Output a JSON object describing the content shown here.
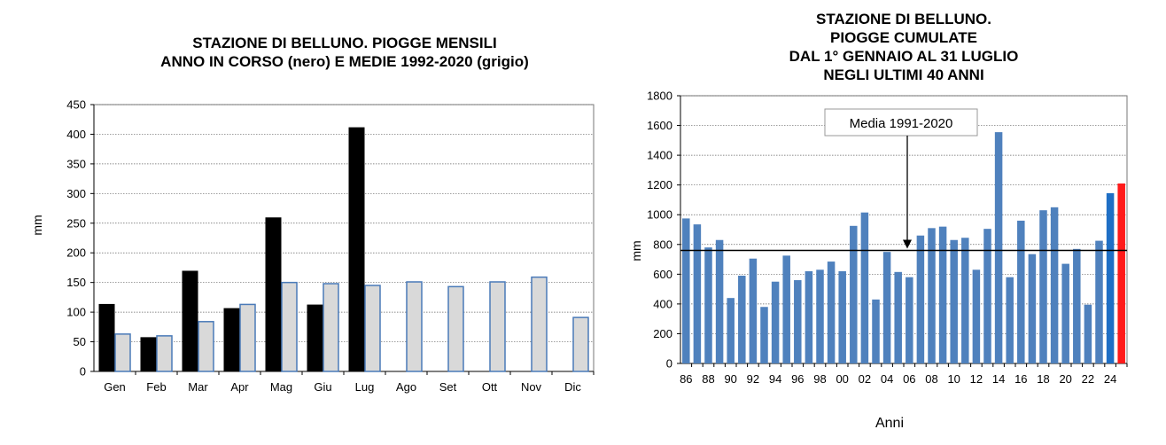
{
  "charts": {
    "left": {
      "title_line1": "STAZIONE DI BELLUNO. PIOGGE MENSILI",
      "title_line2": "ANNO IN CORSO (nero) E MEDIE 1992-2020 (grigio)"
    },
    "right": {
      "title_line1": "STAZIONE DI BELLUNO.",
      "title_line2": "PIOGGE CUMULATE",
      "title_line3": "DAL 1° GENNAIO AL 31 LUGLIO",
      "title_line4": "NEGLI ULTIMI 40 ANNI"
    }
  },
  "colors": {
    "current_year": "#000000",
    "mean": "#d9d9d9",
    "mean_border": "#4a7ab8",
    "annual_bars": "#4f81bd",
    "bar_2024": "#1f6fc5",
    "bar_2025": "#ff1a1a"
  },
  "chart_data": [
    {
      "type": "bar",
      "title": "STAZIONE DI BELLUNO. PIOGGE MENSILI ANNO IN CORSO (nero) E MEDIE 1992-2020 (grigio)",
      "xlabel": "",
      "ylabel": "mm",
      "ylim": [
        0,
        450
      ],
      "yticks": [
        0,
        50,
        100,
        150,
        200,
        250,
        300,
        350,
        400,
        450
      ],
      "grid": "horizontal",
      "categories": [
        "Gen",
        "Feb",
        "Mar",
        "Apr",
        "Mag",
        "Giu",
        "Lug",
        "Ago",
        "Set",
        "Ott",
        "Nov",
        "Dic"
      ],
      "series": [
        {
          "values": [
            113,
            57,
            169,
            106,
            259,
            112,
            411,
            null,
            null,
            null,
            null,
            null
          ]
        },
        {
          "values": [
            63,
            60,
            84,
            113,
            150,
            148,
            145,
            151,
            143,
            151,
            159,
            91
          ]
        }
      ]
    },
    {
      "type": "bar",
      "title": "STAZIONE DI BELLUNO. PIOGGE CUMULATE DAL 1° GENNAIO AL 31 LUGLIO NEGLI ULTIMI 40 ANNI",
      "xlabel": "Anni",
      "ylabel": "mm",
      "ylim": [
        0,
        1800
      ],
      "yticks": [
        0,
        200,
        400,
        600,
        800,
        1000,
        1200,
        1400,
        1600,
        1800
      ],
      "grid": "horizontal",
      "categories": [
        "86",
        "87",
        "88",
        "89",
        "90",
        "91",
        "92",
        "93",
        "94",
        "95",
        "96",
        "97",
        "98",
        "99",
        "00",
        "01",
        "02",
        "03",
        "04",
        "05",
        "06",
        "07",
        "08",
        "09",
        "10",
        "11",
        "12",
        "13",
        "14",
        "15",
        "16",
        "17",
        "18",
        "19",
        "20",
        "21",
        "22",
        "23",
        "24",
        "25"
      ],
      "tick_labels": [
        "86",
        "88",
        "90",
        "92",
        "94",
        "96",
        "98",
        "00",
        "02",
        "04",
        "06",
        "08",
        "10",
        "12",
        "14",
        "16",
        "18",
        "20",
        "22",
        "24"
      ],
      "values": [
        975,
        935,
        780,
        830,
        440,
        590,
        705,
        380,
        550,
        725,
        560,
        620,
        630,
        685,
        620,
        925,
        1015,
        430,
        750,
        615,
        580,
        860,
        910,
        920,
        830,
        845,
        630,
        905,
        1555,
        580,
        960,
        735,
        1030,
        1050,
        670,
        770,
        395,
        825,
        1145,
        1210
      ],
      "reference_line": {
        "label": "Media 1991-2020",
        "value": 760
      }
    }
  ]
}
